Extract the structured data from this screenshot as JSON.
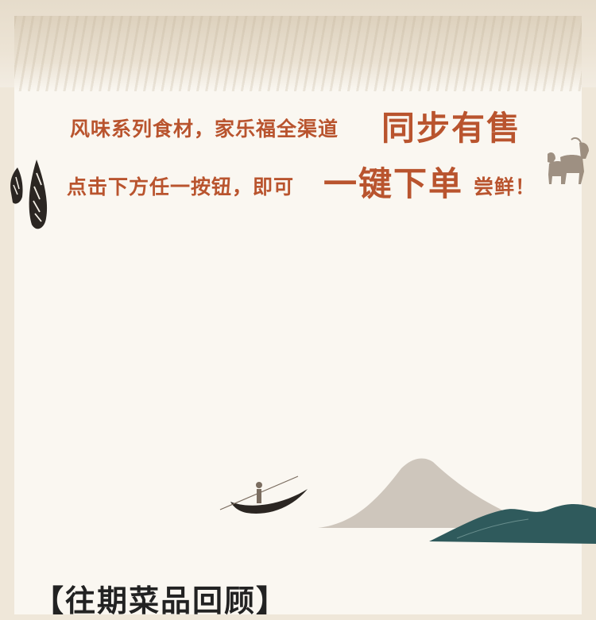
{
  "headline": {
    "line1_text": "风味系列食材，家乐福全渠道",
    "line1_emphasis": "同步有售",
    "line2_text": "点击下方任一按钮，即可",
    "line2_emphasis": "一键下单",
    "line2_suffix": "尝鲜！"
  },
  "section": {
    "title": "【往期菜品回顾】"
  },
  "icons": {
    "left_decoration": "bamboo-shoots-icon",
    "right_decoration": "goats-icon",
    "bottom_decoration": "mountain-boat-landscape"
  },
  "colors": {
    "accent": "#b9542e",
    "background": "#faf7f1",
    "mountain_teal": "#2f5a5c",
    "mountain_gray": "#c8bfb4"
  }
}
